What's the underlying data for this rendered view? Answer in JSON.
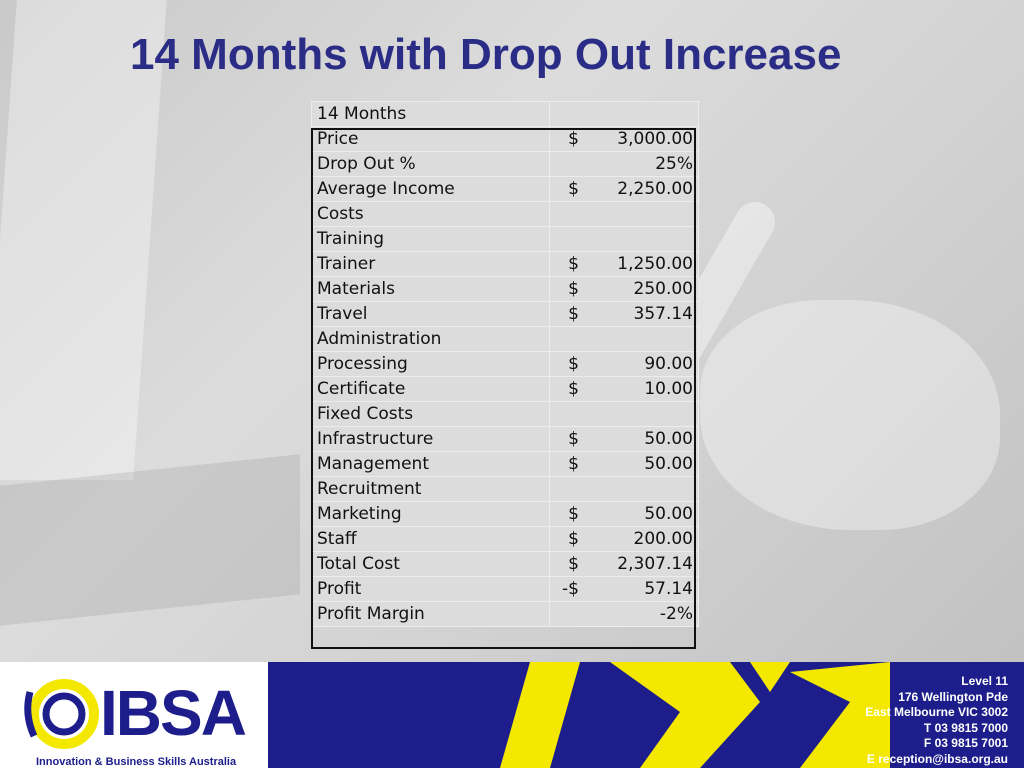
{
  "title": "14 Months with Drop Out Increase",
  "table": {
    "header": "14 Months",
    "rows": [
      {
        "label": "Price",
        "currency": "$",
        "amount": "3,000.00"
      },
      {
        "label": "Drop Out %",
        "currency": "",
        "amount": "25%"
      },
      {
        "label": "Average Income",
        "currency": "$",
        "amount": "2,250.00"
      },
      {
        "label": "Costs",
        "currency": "",
        "amount": ""
      },
      {
        "label": "Training",
        "currency": "",
        "amount": ""
      },
      {
        "label": "Trainer",
        "currency": "$",
        "amount": "1,250.00"
      },
      {
        "label": "Materials",
        "currency": "$",
        "amount": "250.00"
      },
      {
        "label": "Travel",
        "currency": "$",
        "amount": "357.14"
      },
      {
        "label": "Administration",
        "currency": "",
        "amount": ""
      },
      {
        "label": "Processing",
        "currency": "$",
        "amount": "90.00"
      },
      {
        "label": "Certificate",
        "currency": "$",
        "amount": "10.00"
      },
      {
        "label": "Fixed Costs",
        "currency": "",
        "amount": ""
      },
      {
        "label": "Infrastructure",
        "currency": "$",
        "amount": "50.00"
      },
      {
        "label": "Management",
        "currency": "$",
        "amount": "50.00"
      },
      {
        "label": "Recruitment",
        "currency": "",
        "amount": ""
      },
      {
        "label": "Marketing",
        "currency": "$",
        "amount": "50.00"
      },
      {
        "label": "Staff",
        "currency": "$",
        "amount": "200.00"
      },
      {
        "label": "Total Cost",
        "currency": "$",
        "amount": "2,307.14"
      },
      {
        "label": "Profit",
        "currency": "-$",
        "amount": "57.14"
      },
      {
        "label": "Profit Margin",
        "currency": "",
        "amount": "-2%"
      }
    ]
  },
  "footer": {
    "logo_text": "IBSA",
    "logo_subtitle": "Innovation & Business Skills Australia",
    "address": [
      "Level 11",
      "176 Wellington Pde",
      "East Melbourne VIC  3002",
      "T  03 9815 7000",
      "F  03 9815 7001",
      "E  reception@ibsa.org.au"
    ]
  },
  "colors": {
    "title": "#2a2c86",
    "footer_blue": "#1d1d8c",
    "accent_yellow": "#f4e800"
  }
}
